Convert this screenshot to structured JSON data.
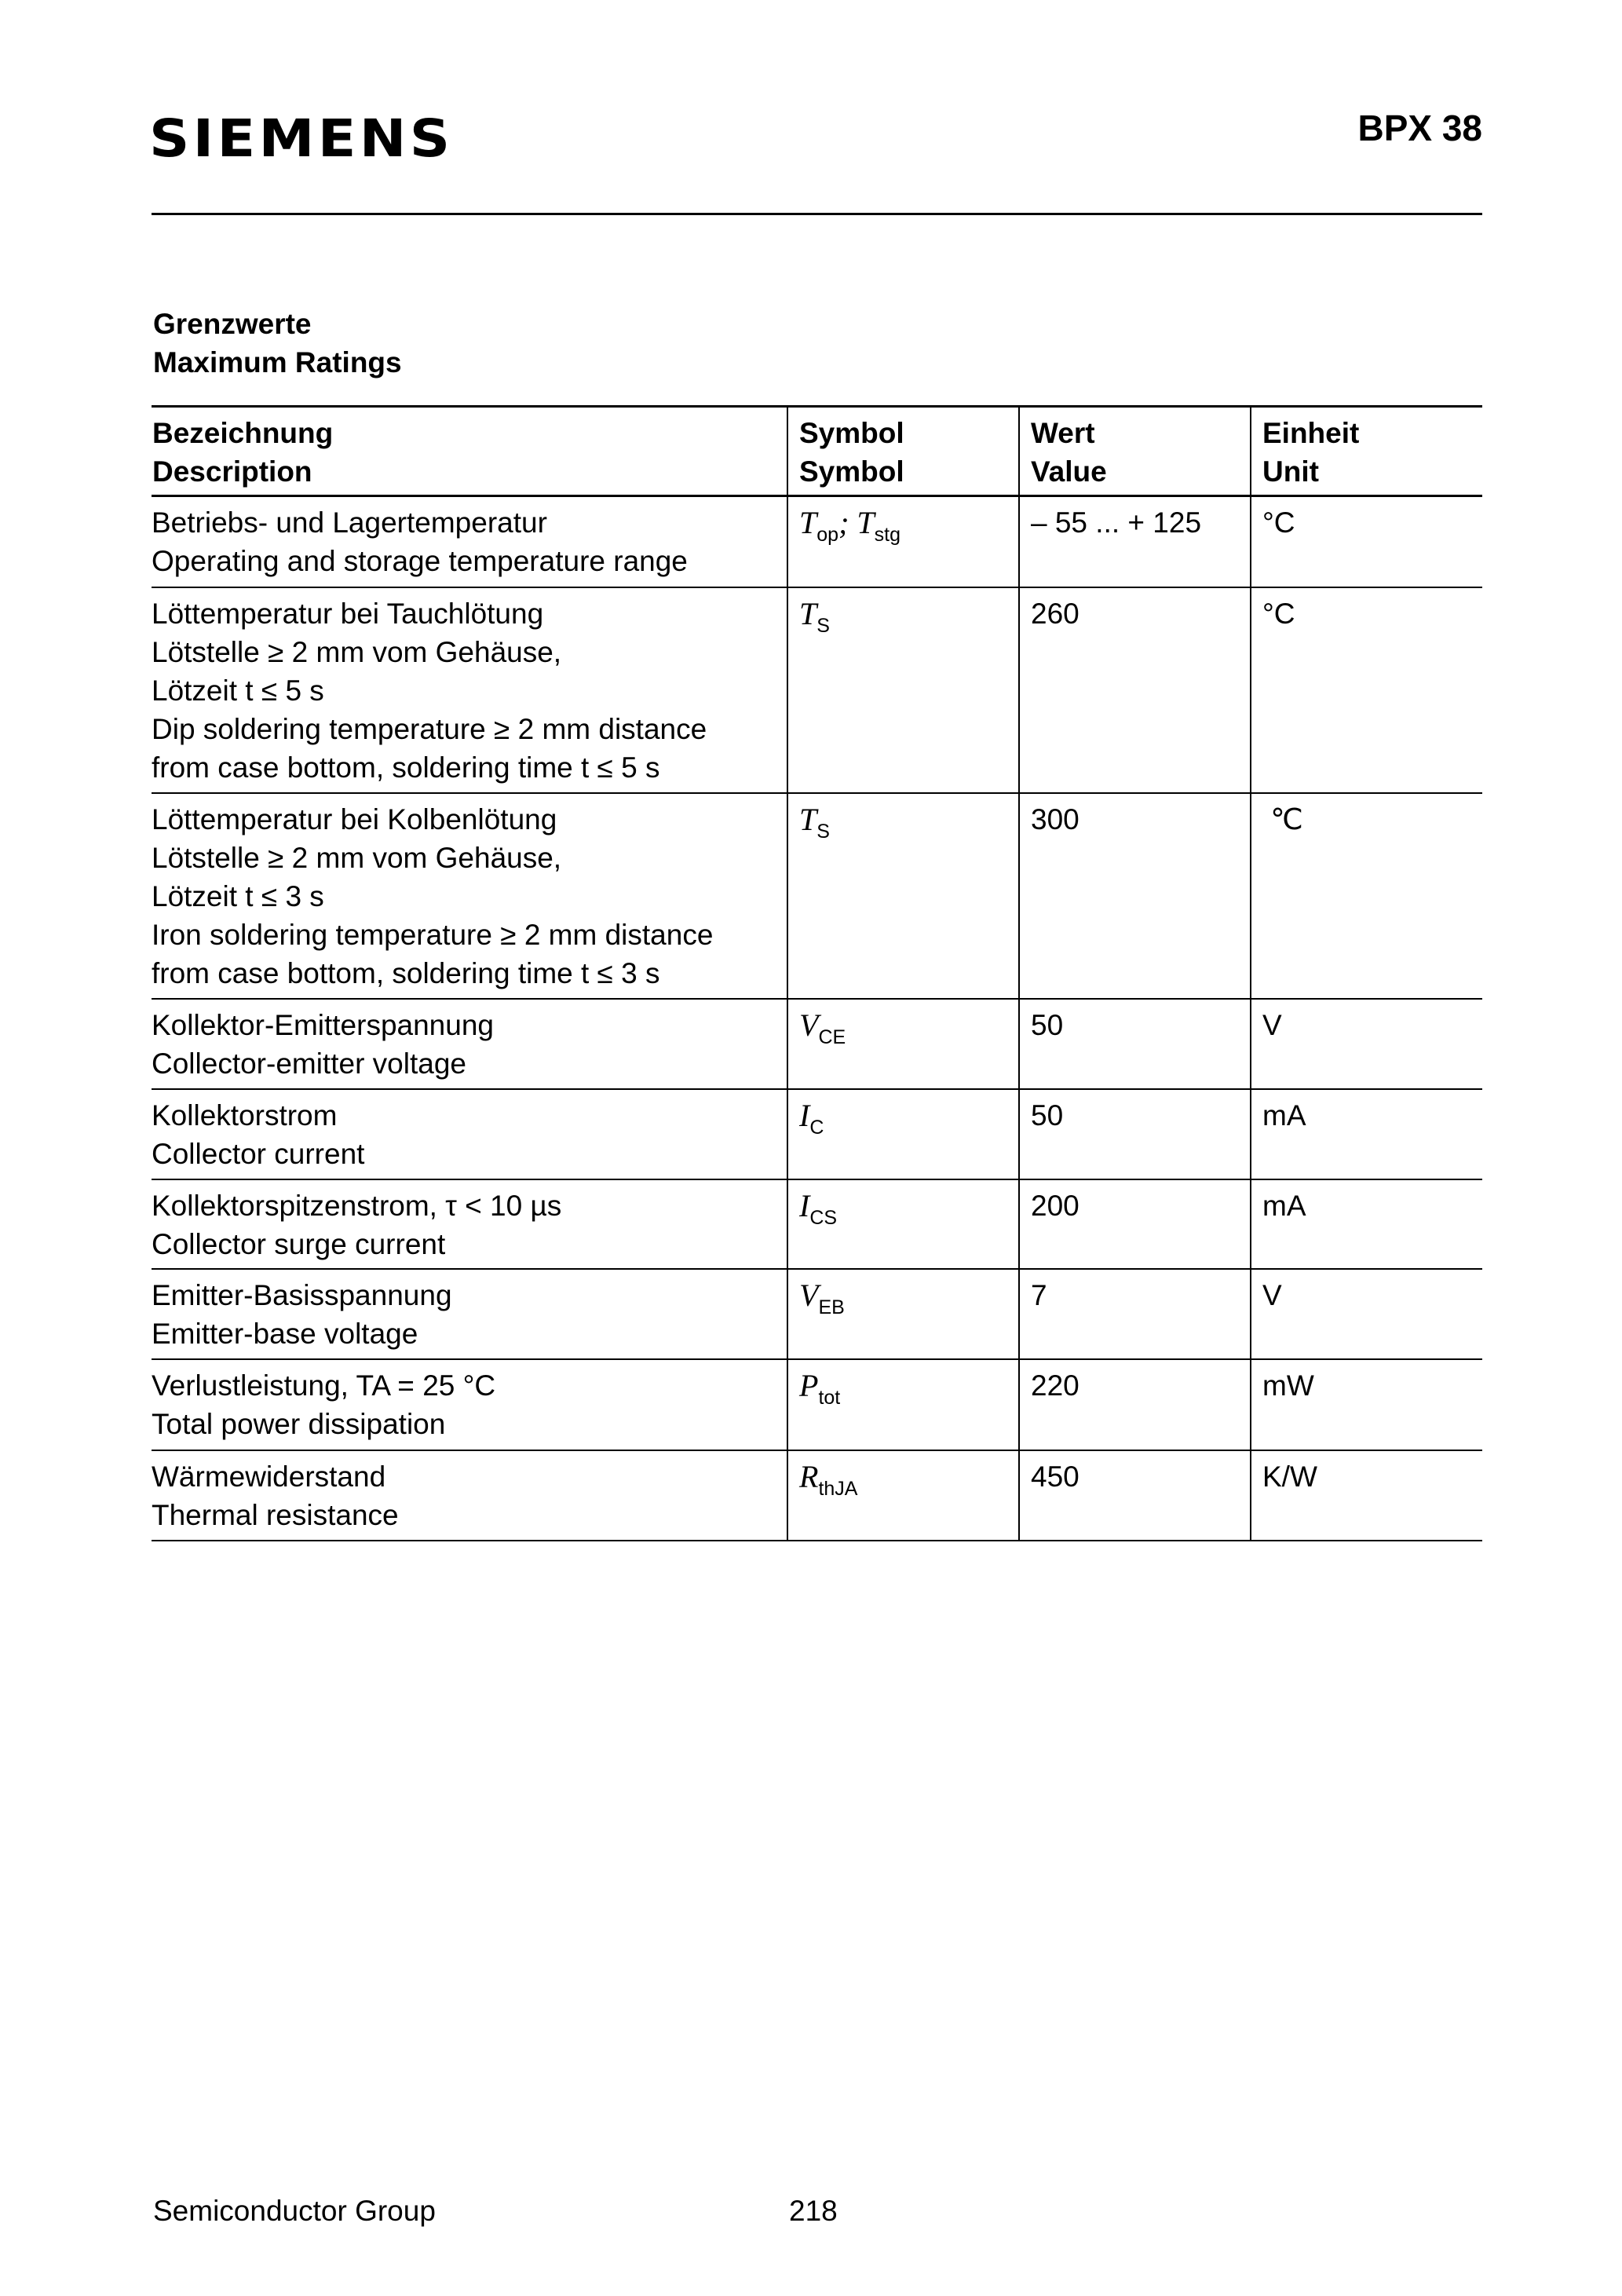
{
  "header": {
    "logo": "SIEMENS",
    "part_number": "BPX 38"
  },
  "section": {
    "title_de": "Grenzwerte",
    "title_en": "Maximum Ratings"
  },
  "table": {
    "headers": [
      [
        "Bezeichnung",
        "Description"
      ],
      [
        "Symbol",
        "Symbol"
      ],
      [
        "Wert",
        "Value"
      ],
      [
        "Einheit",
        "Unit"
      ]
    ],
    "rows": [
      {
        "description": [
          "Betriebs- und Lagertemperatur",
          "Operating and storage temperature range"
        ],
        "symbol": [
          {
            "main": "T",
            "sub": "op"
          },
          {
            "sep": "; "
          },
          {
            "main": "T",
            "sub": "stg"
          }
        ],
        "value": "– 55 ... + 125",
        "unit": "°C"
      },
      {
        "description": [
          "Löttemperatur bei Tauchlötung",
          "Lötstelle ≥ 2 mm vom Gehäuse,",
          "Lötzeit t ≤ 5 s",
          "Dip soldering temperature  ≥ 2 mm distance",
          "from case bottom, soldering time t ≤ 5 s"
        ],
        "symbol": [
          {
            "main": "T",
            "sub": "S"
          }
        ],
        "value": "260",
        "unit": "°C"
      },
      {
        "description": [
          "Löttemperatur bei Kolbenlötung",
          "Lötstelle ≥ 2 mm vom Gehäuse,",
          "Lötzeit t ≤ 3 s",
          "Iron soldering temperature ≥ 2 mm distance",
          "from case bottom, soldering time t ≤ 3 s"
        ],
        "symbol": [
          {
            "main": "T",
            "sub": "S"
          }
        ],
        "value": "300",
        "unit": " ℃"
      },
      {
        "description": [
          "Kollektor-Emitterspannung",
          "Collector-emitter voltage"
        ],
        "symbol": [
          {
            "main": "V",
            "sub": "CE"
          }
        ],
        "value": "50",
        "unit": "V"
      },
      {
        "description": [
          "Kollektorstrom",
          "Collector current"
        ],
        "symbol": [
          {
            "main": "I",
            "sub": "C"
          }
        ],
        "value": "50",
        "unit": "mA"
      },
      {
        "description": [
          "Kollektorspitzenstrom, τ < 10 µs",
          "Collector surge current"
        ],
        "symbol": [
          {
            "main": "I",
            "sub": "CS"
          }
        ],
        "value": "200",
        "unit": "mA"
      },
      {
        "description": [
          "Emitter-Basisspannung",
          "Emitter-base voltage"
        ],
        "symbol": [
          {
            "main": "V",
            "sub": "EB"
          }
        ],
        "value": "7",
        "unit": "V"
      },
      {
        "description": [
          "Verlustleistung, TA = 25 °C",
          "Total power dissipation"
        ],
        "symbol": [
          {
            "main": "P",
            "sub": "tot"
          }
        ],
        "value": "220",
        "unit": "mW"
      },
      {
        "description": [
          "Wärmewiderstand",
          "Thermal resistance"
        ],
        "symbol": [
          {
            "main": "R",
            "sub": "thJA"
          }
        ],
        "value": "450",
        "unit": "K/W"
      }
    ]
  },
  "footer": {
    "group": "Semiconductor Group",
    "page": "218"
  }
}
